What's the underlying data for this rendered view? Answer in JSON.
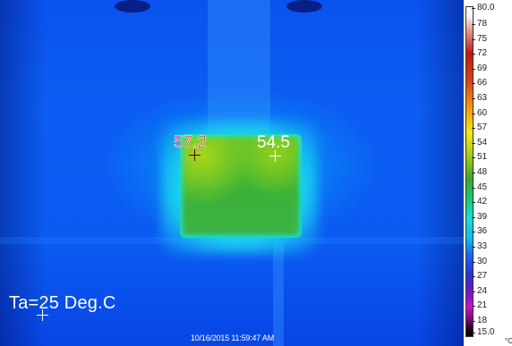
{
  "thermal_image": {
    "readouts": [
      {
        "label": "57.2",
        "color": "#d81b2a"
      },
      {
        "label": "54.5",
        "color": "#ffffff"
      }
    ],
    "ambient_label": "Ta=25 Deg.C",
    "timestamp": "10/16/2015 11:59:47 AM"
  },
  "scale": {
    "max": "80.0",
    "min": "15.0",
    "unit": "°C",
    "ticks": [
      "78",
      "75",
      "72",
      "69",
      "66",
      "63",
      "60",
      "57",
      "54",
      "51",
      "48",
      "45",
      "42",
      "39",
      "36",
      "33",
      "30",
      "27",
      "24",
      "21",
      "18"
    ]
  }
}
